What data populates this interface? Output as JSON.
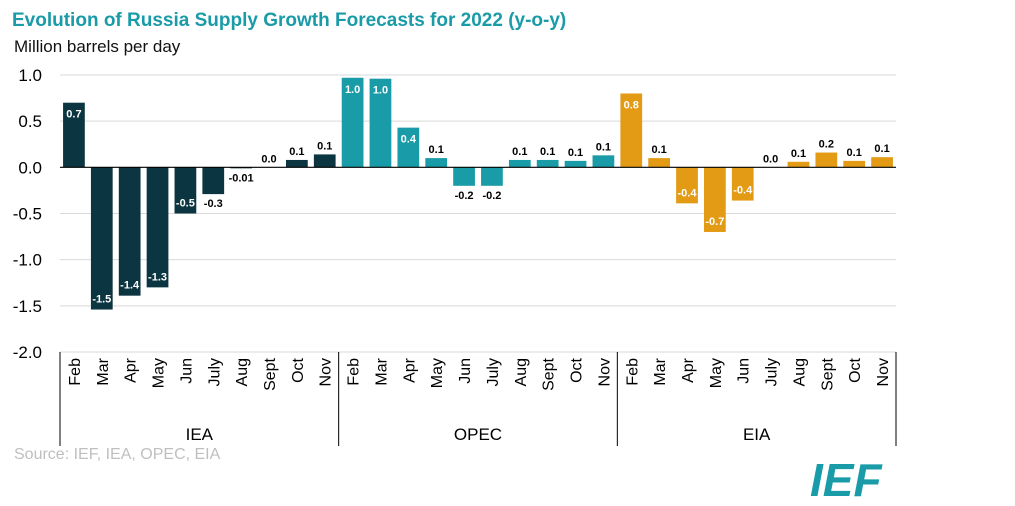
{
  "title": "Evolution of Russia Supply Growth Forecasts for 2022 (y-o-y)",
  "subtitle": "Million barrels per day",
  "source": "Source: IEF, IEA, OPEC, EIA",
  "logo_text": "IEF",
  "colors": {
    "IEA": "#0b3540",
    "OPEC": "#1a9ba8",
    "EIA": "#e39a14",
    "title": "#1a9ba8",
    "grid": "#d9d9d9"
  },
  "chart_data": {
    "type": "bar",
    "ylim": [
      -2.0,
      1.0
    ],
    "yticks": [
      "1.0",
      "0.5",
      "0.0",
      "-0.5",
      "-1.0",
      "-1.5",
      "-2.0"
    ],
    "ytick_values": [
      1.0,
      0.5,
      0.0,
      -0.5,
      -1.0,
      -1.5,
      -2.0
    ],
    "grid": true,
    "groups": [
      {
        "name": "IEA",
        "categories": [
          "Feb",
          "Mar",
          "Apr",
          "May",
          "Jun",
          "July",
          "Aug",
          "Sept",
          "Oct",
          "Nov"
        ],
        "values": [
          0.7,
          -1.54,
          -1.39,
          -1.3,
          -0.5,
          -0.29,
          -0.01,
          0.0,
          0.08,
          0.14
        ],
        "labels": [
          "0.7",
          "-1.5",
          "-1.4",
          "-1.3",
          "-0.5",
          "-0.3",
          "-0.01",
          "0.0",
          "0.1",
          "0.1"
        ]
      },
      {
        "name": "OPEC",
        "categories": [
          "Feb",
          "Mar",
          "Apr",
          "May",
          "Jun",
          "July",
          "Aug",
          "Sept",
          "Oct",
          "Nov"
        ],
        "values": [
          0.97,
          0.96,
          0.43,
          0.1,
          -0.2,
          -0.2,
          0.08,
          0.08,
          0.07,
          0.13
        ],
        "labels": [
          "1.0",
          "1.0",
          "0.4",
          "0.1",
          "-0.2",
          "-0.2",
          "0.1",
          "0.1",
          "0.1",
          "0.1"
        ]
      },
      {
        "name": "EIA",
        "categories": [
          "Feb",
          "Mar",
          "Apr",
          "May",
          "Jun",
          "July",
          "Aug",
          "Sept",
          "Oct",
          "Nov"
        ],
        "values": [
          0.8,
          0.1,
          -0.39,
          -0.7,
          -0.36,
          0.0,
          0.06,
          0.16,
          0.07,
          0.11
        ],
        "labels": [
          "0.8",
          "0.1",
          "-0.4",
          "-0.7",
          "-0.4",
          "0.0",
          "0.1",
          "0.2",
          "0.1",
          "0.1"
        ]
      }
    ]
  }
}
